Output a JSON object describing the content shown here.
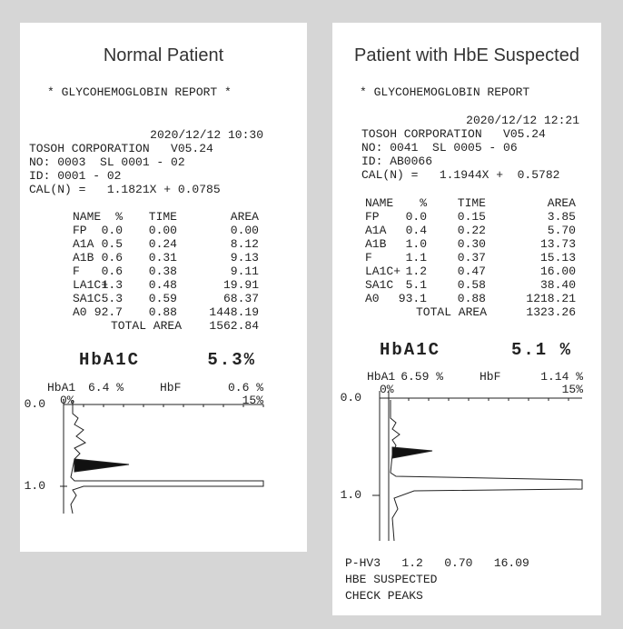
{
  "panels": [
    {
      "title": "Normal Patient",
      "report_title": "* GLYCOHEMOGLOBIN REPORT *",
      "datetime": "2020/12/12 10:30",
      "header_lines": [
        "TOSOH CORPORATION   V05.24",
        "NO: 0003  SL 0001 - 02",
        "ID: 0001 - 02",
        "CAL(N) =   1.1821X + 0.0785"
      ],
      "table": {
        "columns": [
          "NAME",
          "%",
          "TIME",
          "AREA"
        ],
        "rows": [
          [
            "FP",
            "0.0",
            "0.00",
            "0.00"
          ],
          [
            "A1A",
            "0.5",
            "0.24",
            "8.12"
          ],
          [
            "A1B",
            "0.6",
            "0.31",
            "9.13"
          ],
          [
            "F",
            "0.6",
            "0.38",
            "9.11"
          ],
          [
            "LA1C+",
            "1.3",
            "0.48",
            "19.91"
          ],
          [
            "SA1C",
            "5.3",
            "0.59",
            "68.37"
          ],
          [
            "A0",
            "92.7",
            "0.88",
            "1448.19"
          ]
        ],
        "total_label": "TOTAL AREA",
        "total": "1562.84"
      },
      "hba1c_label": "HbA1C",
      "hba1c_value": "5.3%",
      "hba1_label": "HbA1",
      "hba1_value": "6.4 %",
      "hbf_label": "HbF",
      "hbf_value": "0.6 %",
      "scale_min": "0%",
      "scale_max": "15%",
      "time_labels": [
        "0.0",
        "1.0"
      ],
      "notes": []
    },
    {
      "title": "Patient with HbE Suspected",
      "report_title": "* GLYCOHEMOGLOBIN REPORT",
      "datetime": "2020/12/12 12:21",
      "header_lines": [
        "TOSOH CORPORATION   V05.24",
        "NO: 0041  SL 0005 - 06",
        "ID: AB0066",
        "CAL(N) =   1.1944X +  0.5782"
      ],
      "table": {
        "columns": [
          "NAME",
          "%",
          "TIME",
          "AREA"
        ],
        "rows": [
          [
            "FP",
            "0.0",
            "0.15",
            "3.85"
          ],
          [
            "A1A",
            "0.4",
            "0.22",
            "5.70"
          ],
          [
            "A1B",
            "1.0",
            "0.30",
            "13.73"
          ],
          [
            "F",
            "1.1",
            "0.37",
            "15.13"
          ],
          [
            "LA1C+",
            "1.2",
            "0.47",
            "16.00"
          ],
          [
            "SA1C",
            "5.1",
            "0.58",
            "38.40"
          ],
          [
            "A0",
            "93.1",
            "0.88",
            "1218.21"
          ]
        ],
        "total_label": "TOTAL AREA",
        "total": "1323.26"
      },
      "hba1c_label": "HbA1C",
      "hba1c_value": "5.1 %",
      "hba1_label": "HbA1",
      "hba1_value": "6.59 %",
      "hbf_label": "HbF",
      "hbf_value": "1.14 %",
      "scale_min": "0%",
      "scale_max": "15%",
      "time_labels": [
        "0.0",
        "1.0"
      ],
      "notes": [
        "P-HV3   1.2   0.70   16.09",
        "HBE SUSPECTED",
        "CHECK PEAKS"
      ]
    }
  ]
}
